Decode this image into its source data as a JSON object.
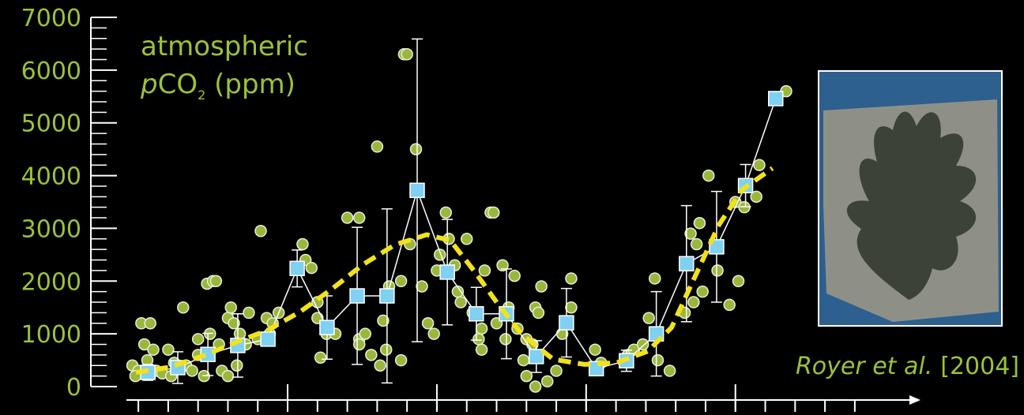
{
  "chart_data": {
    "type": "scatter",
    "ylabel": {
      "line1": "atmospheric",
      "italic": "p",
      "main": "CO",
      "subscript": "2",
      "rest": " (ppm)"
    },
    "annotation": {
      "author": "Royer et al.",
      "year": "[2004]"
    },
    "ylim": [
      0,
      7000
    ],
    "yticks": [
      0,
      1000,
      2000,
      3000,
      4000,
      5000,
      6000,
      7000
    ],
    "yminorticks": [
      200,
      400,
      600,
      800,
      1200,
      1400,
      1600,
      1800,
      2200,
      2400,
      2600,
      2800,
      3200,
      3400,
      3600,
      3800,
      4200,
      4400,
      4600,
      4800,
      5200,
      5400,
      5600,
      5800,
      6200,
      6400,
      6600,
      6800
    ],
    "xlim": [
      -0.4,
      26.2
    ],
    "xticks": [
      0,
      1,
      2,
      3,
      4,
      5,
      6,
      7,
      8,
      9,
      10,
      11,
      12,
      13,
      14,
      15,
      16,
      17,
      18,
      19,
      20,
      21,
      22,
      23,
      24
    ],
    "xticks_major": [
      5,
      10,
      15,
      20
    ],
    "text_color": "#9bc23c",
    "axis_color": "#ffffff",
    "series": [
      {
        "type": "scatter",
        "color": "#9ab73b",
        "x": [
          -0.2,
          0,
          -0.1,
          0.1,
          0.4,
          0.2,
          0.5,
          0.3,
          0.6,
          0.8,
          1.0,
          1.2,
          1.1,
          1.5,
          1.6,
          1.8,
          2.0,
          2.2,
          2.0,
          2.3,
          2.5,
          2.6,
          2.4,
          2.7,
          2.8,
          3.0,
          3.1,
          3.2,
          3.4,
          3.3,
          3.6,
          3.0,
          3.7,
          4.1,
          4.3,
          4.5,
          4.7,
          5.5,
          5.6,
          5.8,
          6.0,
          6.0,
          6.3,
          6.1,
          6.6,
          7.0,
          7.4,
          7.4,
          7.6,
          7.4,
          7.8,
          8.1,
          8.2,
          8.3,
          8.4,
          8.0,
          8.8,
          8.9,
          9.0,
          9.1,
          9.3,
          9.5,
          9.7,
          9.9,
          10.0,
          10.1,
          10.3,
          10.4,
          10.6,
          10.7,
          10.8,
          11.0,
          11.2,
          11.4,
          11.5,
          11.5,
          11.8,
          11.9,
          12.2,
          12.3,
          12.6,
          12.4,
          12.7,
          12.9,
          13.0,
          13.3,
          13.4,
          13.0,
          13.5,
          13.2,
          13.7,
          14.0,
          13.3,
          14.5,
          14.5,
          14.2,
          15.3,
          15.5,
          16.4,
          16.6,
          16.9,
          17.3,
          17.1,
          17.4,
          17.8,
          18.3,
          18.5,
          18.7,
          18.8,
          18.6,
          18.9,
          19.1,
          19.4,
          19.8,
          20.1,
          20.0,
          20.3,
          20.8,
          20.7,
          21.7,
          8.8,
          4.0,
          4.4,
          12.0,
          11.6
        ],
        "values": [
          400,
          300,
          200,
          1200,
          1200,
          800,
          700,
          500,
          300,
          250,
          700,
          450,
          200,
          1500,
          400,
          300,
          600,
          200,
          900,
          1950,
          2000,
          2000,
          1000,
          800,
          300,
          1300,
          1500,
          1200,
          1000,
          400,
          800,
          200,
          1400,
          2950,
          1300,
          1200,
          1400,
          2700,
          2400,
          2250,
          1600,
          1300,
          1000,
          550,
          1000,
          3200,
          3200,
          900,
          1000,
          800,
          600,
          400,
          1250,
          700,
          1900,
          4550,
          500,
          6300,
          6300,
          2700,
          4500,
          1900,
          1200,
          1000,
          2200,
          2500,
          3300,
          2800,
          2300,
          1800,
          1600,
          2800,
          1400,
          900,
          1100,
          700,
          3300,
          3300,
          2300,
          900,
          2100,
          1500,
          1100,
          500,
          900,
          1500,
          1400,
          200,
          1900,
          800,
          100,
          300,
          0,
          2050,
          1500,
          1000,
          700,
          450,
          600,
          700,
          800,
          2050,
          1300,
          500,
          300,
          1400,
          2900,
          2700,
          3100,
          1600,
          1800,
          4000,
          2200,
          1550,
          2000,
          3500,
          3400,
          4200,
          3600,
          5600,
          2000,
          900,
          1000,
          1200,
          2200
        ]
      },
      {
        "type": "errorbar",
        "color": "#7fd0f2",
        "line_color": "#ffffff",
        "x": [
          0.32,
          1.32,
          2.33,
          3.33,
          4.34,
          5.32,
          6.32,
          7.33,
          8.33,
          9.34,
          10.35,
          11.32,
          12.33,
          13.33,
          14.34,
          15.34,
          16.35,
          17.35,
          18.36,
          19.37,
          20.34,
          21.35
        ],
        "values": [
          270,
          360,
          610,
          780,
          900,
          2240,
          1120,
          1720,
          1720,
          3720,
          2170,
          1380,
          1380,
          570,
          1210,
          340,
          490,
          1000,
          2330,
          2650,
          3810,
          5460
        ],
        "errors": [
          150,
          300,
          400,
          600,
          100,
          350,
          600,
          1300,
          1650,
          2870,
          1000,
          500,
          850,
          300,
          650,
          100,
          200,
          800,
          1100,
          1050,
          400,
          null
        ]
      },
      {
        "type": "line",
        "color": "#f2e21c",
        "dashed": true,
        "x": [
          -0.08,
          1.06,
          2.25,
          3.31,
          4.37,
          5.42,
          6.48,
          7.54,
          8.6,
          9.66,
          10.45,
          11.24,
          12.04,
          12.83,
          13.89,
          14.95,
          16.01,
          17.06,
          17.86,
          18.65,
          19.44,
          20.24,
          21.24
        ],
        "values": [
          270,
          370,
          600,
          850,
          1080,
          1420,
          1850,
          2320,
          2690,
          2880,
          2770,
          2200,
          1570,
          1000,
          520,
          420,
          450,
          670,
          1120,
          2090,
          3060,
          3740,
          4140
        ]
      }
    ]
  }
}
